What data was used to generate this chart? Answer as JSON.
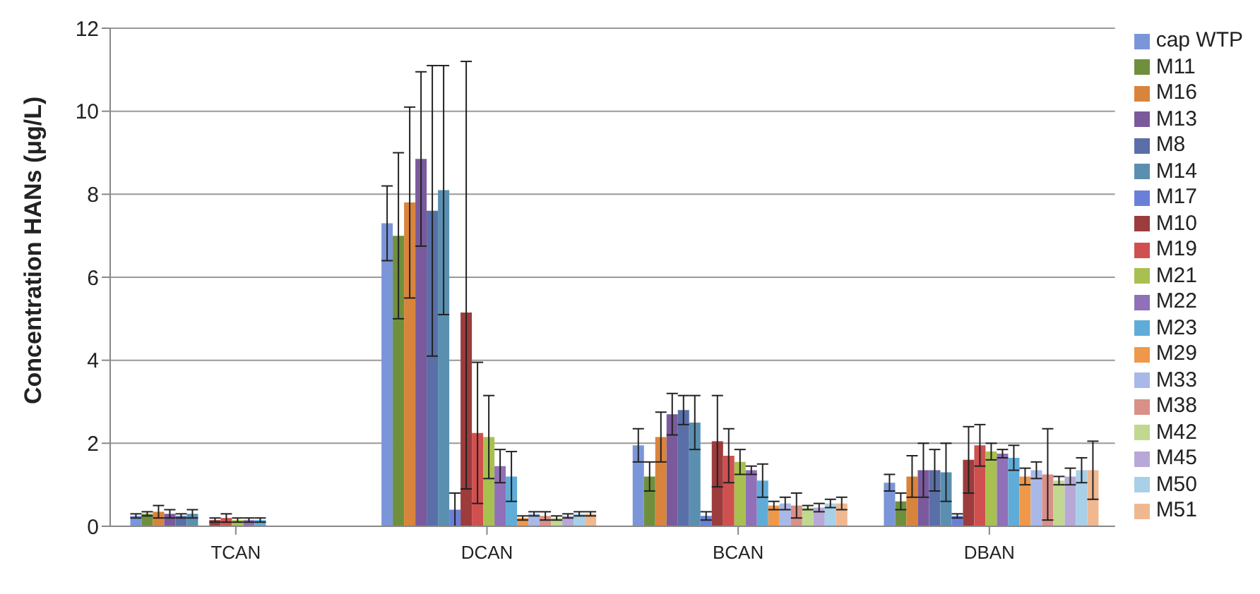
{
  "chart_data": {
    "type": "bar",
    "ylabel": "Concentration HANs (μg/L)",
    "categories": [
      "TCAN",
      "DCAN",
      "BCAN",
      "DBAN"
    ],
    "ylim": [
      0,
      12
    ],
    "yticks": [
      0,
      2,
      4,
      6,
      8,
      10,
      12
    ],
    "grid": "y",
    "legend": "right",
    "series": [
      {
        "name": "cap WTP",
        "color": "#7b96d8",
        "values": [
          0.25,
          7.3,
          1.95,
          1.05
        ],
        "errors": [
          0.05,
          0.9,
          0.4,
          0.2
        ]
      },
      {
        "name": "M11",
        "color": "#6f8f3c",
        "values": [
          0.3,
          7.0,
          1.2,
          0.6
        ],
        "errors": [
          0.05,
          2.0,
          0.35,
          0.2
        ]
      },
      {
        "name": "M16",
        "color": "#d9843c",
        "values": [
          0.35,
          7.8,
          2.15,
          1.2
        ],
        "errors": [
          0.15,
          2.3,
          0.6,
          0.5
        ]
      },
      {
        "name": "M13",
        "color": "#7a5a9c",
        "values": [
          0.3,
          8.85,
          2.7,
          1.35
        ],
        "errors": [
          0.1,
          2.1,
          0.5,
          0.65
        ]
      },
      {
        "name": "M8",
        "color": "#5a6fa8",
        "values": [
          0.25,
          7.6,
          2.8,
          1.35
        ],
        "errors": [
          0.05,
          3.5,
          0.35,
          0.5
        ]
      },
      {
        "name": "M14",
        "color": "#5a8fb0",
        "values": [
          0.3,
          8.1,
          2.5,
          1.3
        ],
        "errors": [
          0.1,
          3.0,
          0.65,
          0.7
        ]
      },
      {
        "name": "M17",
        "color": "#6a80d8",
        "values": [
          null,
          0.4,
          0.25,
          0.25
        ],
        "errors": [
          null,
          0.4,
          0.1,
          0.05
        ]
      },
      {
        "name": "M10",
        "color": "#9c3c3c",
        "values": [
          0.15,
          5.15,
          2.05,
          1.6
        ],
        "errors": [
          0.05,
          [
            0.9,
            11.2
          ],
          1.1,
          0.8
        ]
      },
      {
        "name": "M19",
        "color": "#d05050",
        "values": [
          0.2,
          2.25,
          1.7,
          1.95
        ],
        "errors": [
          0.1,
          1.7,
          0.65,
          0.5
        ]
      },
      {
        "name": "M21",
        "color": "#a8c050",
        "values": [
          0.15,
          2.15,
          1.55,
          1.8
        ],
        "errors": [
          0.05,
          1.0,
          0.3,
          0.2
        ]
      },
      {
        "name": "M22",
        "color": "#9070b8",
        "values": [
          0.15,
          1.45,
          1.35,
          1.75
        ],
        "errors": [
          0.05,
          0.4,
          0.1,
          0.1
        ]
      },
      {
        "name": "M23",
        "color": "#60acd8",
        "values": [
          0.15,
          1.2,
          1.1,
          1.65
        ],
        "errors": [
          0.05,
          0.6,
          0.4,
          0.3
        ]
      },
      {
        "name": "M29",
        "color": "#f0984a",
        "values": [
          null,
          0.2,
          0.5,
          1.2
        ],
        "errors": [
          null,
          0.05,
          0.1,
          0.2
        ]
      },
      {
        "name": "M33",
        "color": "#a8b8e8",
        "values": [
          null,
          0.3,
          0.55,
          1.35
        ],
        "errors": [
          null,
          0.05,
          0.15,
          0.2
        ]
      },
      {
        "name": "M38",
        "color": "#d89088",
        "values": [
          null,
          0.25,
          0.5,
          1.25
        ],
        "errors": [
          null,
          0.1,
          0.3,
          1.1
        ]
      },
      {
        "name": "M42",
        "color": "#c0d890",
        "values": [
          null,
          0.2,
          0.45,
          1.1
        ],
        "errors": [
          null,
          0.05,
          0.05,
          0.1
        ]
      },
      {
        "name": "M45",
        "color": "#b8a8d8",
        "values": [
          null,
          0.25,
          0.45,
          1.2
        ],
        "errors": [
          null,
          0.05,
          0.1,
          0.2
        ]
      },
      {
        "name": "M50",
        "color": "#a8d0e8",
        "values": [
          null,
          0.3,
          0.55,
          1.35
        ],
        "errors": [
          null,
          0.05,
          0.1,
          0.3
        ]
      },
      {
        "name": "M51",
        "color": "#f0b890",
        "values": [
          null,
          0.3,
          0.55,
          1.35
        ],
        "errors": [
          null,
          0.05,
          0.15,
          0.7
        ]
      }
    ]
  }
}
